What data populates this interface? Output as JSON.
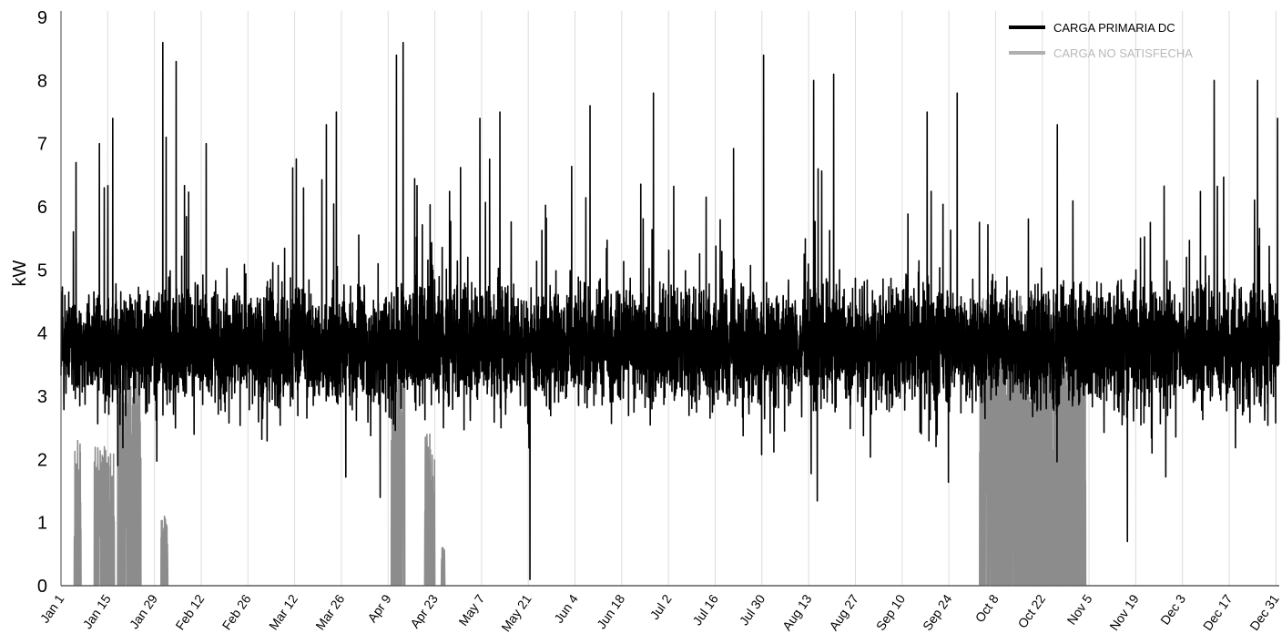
{
  "chart_data": {
    "type": "line",
    "title": "",
    "xlabel": "",
    "ylabel": "kW",
    "ylim": [
      0,
      9
    ],
    "yticks": [
      0,
      1,
      2,
      3,
      4,
      5,
      6,
      7,
      8,
      9
    ],
    "xlim": [
      "Jan 1",
      "Dec 31"
    ],
    "xtick_labels": [
      "Jan 1",
      "Jan 15",
      "Jan 29",
      "Feb 12",
      "Feb 26",
      "Mar 12",
      "Mar 26",
      "Apr 9",
      "Apr 23",
      "May 7",
      "May 21",
      "Jun 4",
      "Jun 18",
      "Jul 2",
      "Jul 16",
      "Jul 30",
      "Aug 13",
      "Aug 27",
      "Sep 10",
      "Sep 24",
      "Oct 8",
      "Oct 22",
      "Nov 5",
      "Nov 19",
      "Dec 3",
      "Dec 17",
      "Dec 31"
    ],
    "grid": "vertical",
    "legend_position": "top-right",
    "resolution": "hourly, 8760 values per series",
    "series": [
      {
        "name": "CARGA PRIMARIA DC",
        "color": "#000000",
        "typical_range": [
          2.5,
          5.5
        ],
        "mean": 3.8,
        "peaks": [
          {
            "date": "Jan 5",
            "value": 6.7
          },
          {
            "date": "Jan 12",
            "value": 7.0
          },
          {
            "date": "Jan 16",
            "value": 7.4
          },
          {
            "date": "Jan 31",
            "value": 8.6
          },
          {
            "date": "Feb 1",
            "value": 7.1
          },
          {
            "date": "Feb 4",
            "value": 8.3
          },
          {
            "date": "Feb 13",
            "value": 7.0
          },
          {
            "date": "Mar 21",
            "value": 7.3
          },
          {
            "date": "Mar 24",
            "value": 7.5
          },
          {
            "date": "Apr 11",
            "value": 8.4
          },
          {
            "date": "Apr 13",
            "value": 8.6
          },
          {
            "date": "May 6",
            "value": 7.4
          },
          {
            "date": "May 12",
            "value": 7.5
          },
          {
            "date": "May 21",
            "value": 0.1
          },
          {
            "date": "Jun 8",
            "value": 7.6
          },
          {
            "date": "Jun 27",
            "value": 7.8
          },
          {
            "date": "Jul 30",
            "value": 8.4
          },
          {
            "date": "Aug 14",
            "value": 8.0
          },
          {
            "date": "Aug 20",
            "value": 8.1
          },
          {
            "date": "Sep 17",
            "value": 7.5
          },
          {
            "date": "Sep 26",
            "value": 7.8
          },
          {
            "date": "Oct 26",
            "value": 7.3
          },
          {
            "date": "Nov 16",
            "value": 0.7
          },
          {
            "date": "Dec 12",
            "value": 8.0
          },
          {
            "date": "Dec 25",
            "value": 8.0
          },
          {
            "date": "Dec 31",
            "value": 7.4
          }
        ]
      },
      {
        "name": "CARGA NO SATISFECHA",
        "color": "#8c8c8c",
        "episodes": [
          {
            "start": "Jan 5",
            "end": "Jan 6",
            "max": 2.3
          },
          {
            "start": "Jan 11",
            "end": "Jan 16",
            "max": 2.2
          },
          {
            "start": "Jan 18",
            "end": "Jan 24",
            "max": 3.7
          },
          {
            "start": "Jan 31",
            "end": "Feb 1",
            "max": 1.1
          },
          {
            "start": "Apr 10",
            "end": "Apr 13",
            "max": 3.8
          },
          {
            "start": "Apr 20",
            "end": "Apr 22",
            "max": 2.4
          },
          {
            "start": "Apr 25",
            "end": "Apr 25",
            "max": 0.6
          },
          {
            "start": "Oct 3",
            "end": "Nov 3",
            "max": 4.6
          }
        ]
      }
    ]
  },
  "legend": {
    "items": [
      {
        "label": "CARGA PRIMARIA DC",
        "color": "#000000"
      },
      {
        "label": "CARGA NO SATISFECHA",
        "color": "#b0b0b0"
      }
    ]
  }
}
